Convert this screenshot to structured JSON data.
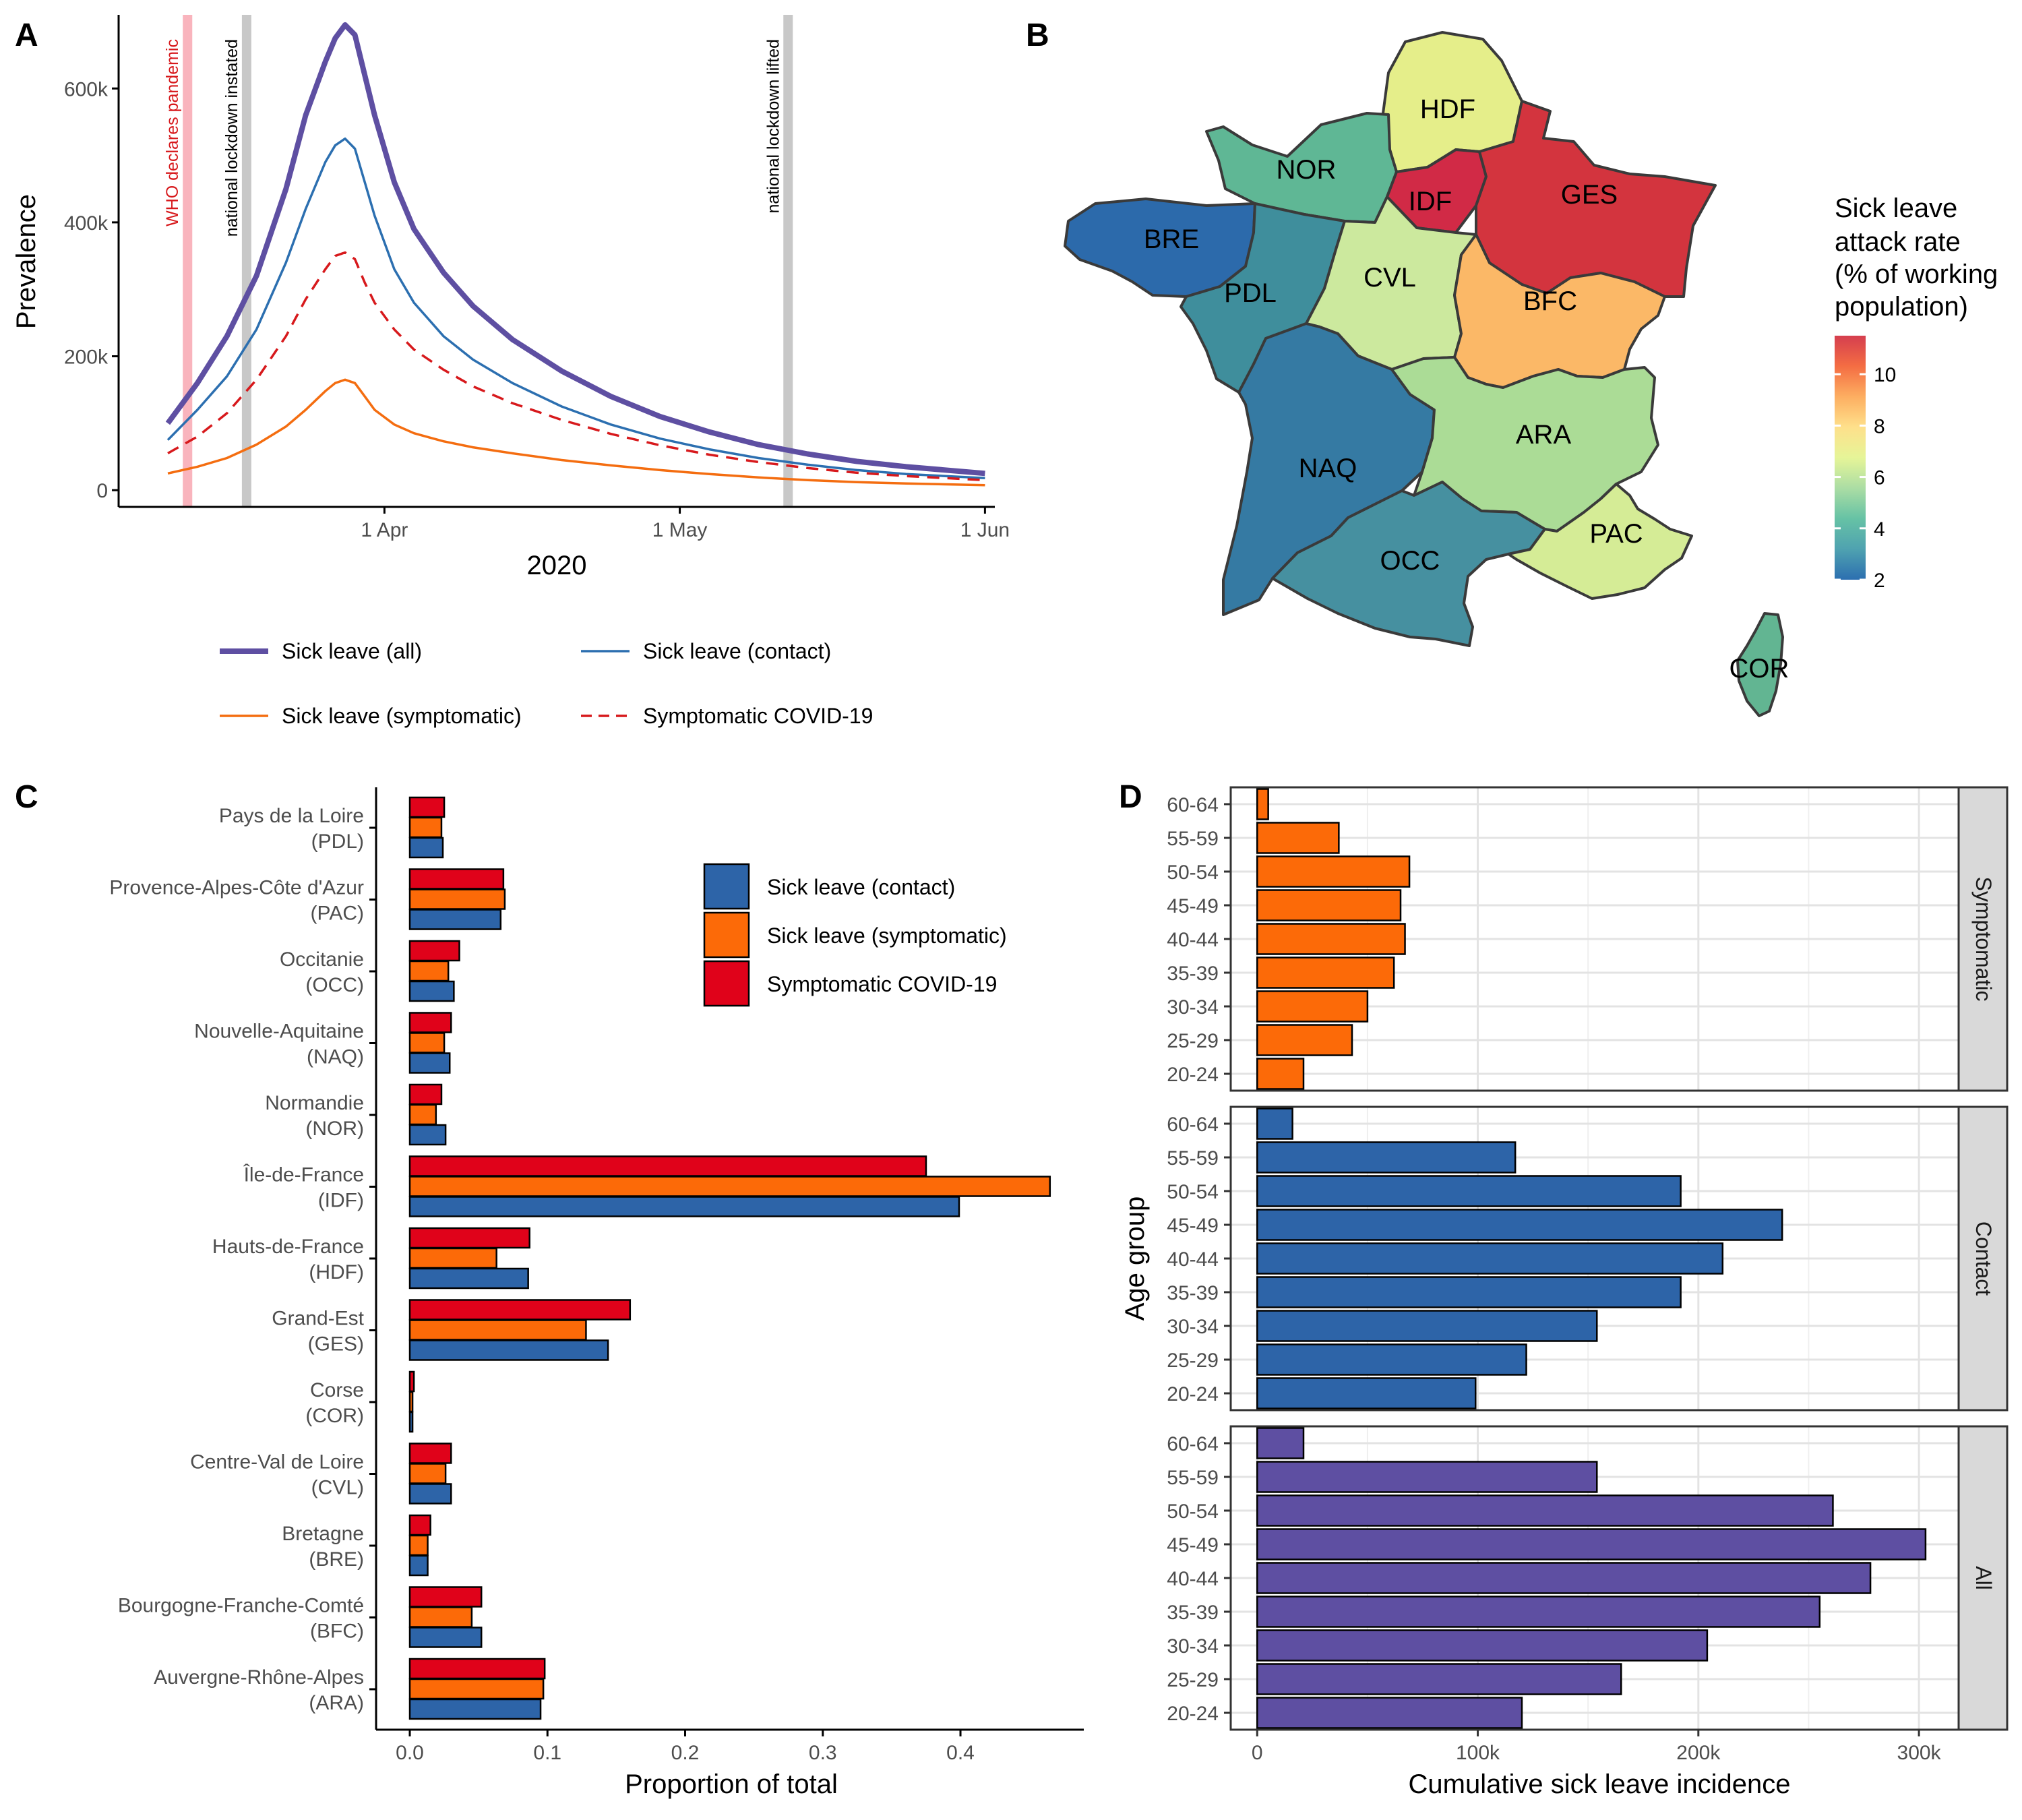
{
  "panels": {
    "a": "A",
    "b": "B",
    "c": "C",
    "d": "D"
  },
  "chart_data": [
    {
      "panel": "A",
      "type": "line",
      "xlabel": "2020",
      "ylabel": "Prevalence",
      "x_start": "2020-03-04",
      "x_ticks": [
        {
          "day": 27,
          "label": "1 Apr"
        },
        {
          "day": 57,
          "label": "1 May"
        },
        {
          "day": 88,
          "label": "1 Jun"
        }
      ],
      "y_ticks": [
        {
          "value": 0,
          "label": "0"
        },
        {
          "value": 200000,
          "label": "200k"
        },
        {
          "value": 400000,
          "label": "400k"
        },
        {
          "value": 600000,
          "label": "600k"
        }
      ],
      "xlim": [
        0,
        89
      ],
      "ylim": [
        -25000,
        710000
      ],
      "events": [
        {
          "day": 7,
          "label": "WHO declares pandemic",
          "color": "#f9b4bd",
          "text_color": "#d7191c"
        },
        {
          "day": 13,
          "label": "national lockdown instated",
          "color": "#c8c8c8",
          "text_color": "#000000"
        },
        {
          "day": 68,
          "label": "national lockdown lifted",
          "color": "#c8c8c8",
          "text_color": "#000000"
        }
      ],
      "series": [
        {
          "name": "Sick leave (all)",
          "color": "#5e4fa2",
          "dash": "solid",
          "width": "thick",
          "x": [
            5,
            8,
            11,
            14,
            17,
            19,
            21,
            22,
            23,
            24,
            25,
            26,
            28,
            30,
            33,
            36,
            40,
            45,
            50,
            55,
            60,
            65,
            70,
            75,
            80,
            88
          ],
          "y": [
            100000,
            160000,
            230000,
            320000,
            450000,
            560000,
            640000,
            675000,
            695000,
            680000,
            620000,
            560000,
            460000,
            390000,
            325000,
            275000,
            225000,
            178000,
            140000,
            110000,
            87000,
            68000,
            54000,
            43000,
            35000,
            25000
          ]
        },
        {
          "name": "Sick leave (contact)",
          "color": "#2c6fb0",
          "dash": "solid",
          "width": "thin",
          "x": [
            5,
            8,
            11,
            14,
            17,
            19,
            21,
            22,
            23,
            24,
            25,
            26,
            28,
            30,
            33,
            36,
            40,
            45,
            50,
            55,
            60,
            65,
            70,
            75,
            80,
            88
          ],
          "y": [
            75000,
            120000,
            170000,
            240000,
            340000,
            420000,
            490000,
            515000,
            525000,
            510000,
            460000,
            410000,
            330000,
            280000,
            230000,
            195000,
            160000,
            125000,
            98000,
            77000,
            61000,
            48000,
            38000,
            30000,
            24000,
            18000
          ]
        },
        {
          "name": "Symptomatic COVID-19",
          "color": "#d7191c",
          "dash": "dashed",
          "width": "thin",
          "x": [
            5,
            8,
            11,
            14,
            17,
            19,
            21,
            22,
            23,
            24,
            25,
            26,
            28,
            30,
            33,
            36,
            40,
            45,
            50,
            55,
            60,
            65,
            70,
            75,
            80,
            88
          ],
          "y": [
            55000,
            80000,
            115000,
            165000,
            230000,
            285000,
            330000,
            350000,
            355000,
            345000,
            310000,
            280000,
            240000,
            210000,
            180000,
            155000,
            130000,
            105000,
            84000,
            67000,
            53000,
            42000,
            33000,
            26000,
            21000,
            15000
          ]
        },
        {
          "name": "Sick leave (symptomatic)",
          "color": "#f46d10",
          "dash": "solid",
          "width": "thin",
          "x": [
            5,
            8,
            11,
            14,
            17,
            19,
            21,
            22,
            23,
            24,
            25,
            26,
            28,
            30,
            33,
            36,
            40,
            45,
            50,
            55,
            60,
            65,
            70,
            75,
            80,
            88
          ],
          "y": [
            25000,
            35000,
            48000,
            68000,
            95000,
            120000,
            148000,
            160000,
            165000,
            160000,
            140000,
            120000,
            98000,
            85000,
            73000,
            64000,
            55000,
            45000,
            37000,
            30000,
            24000,
            19000,
            15000,
            12000,
            10000,
            7500
          ]
        }
      ],
      "legend": [
        {
          "label": "Sick leave (all)",
          "color": "#5e4fa2",
          "dash": "solid",
          "width": "thick"
        },
        {
          "label": "Sick leave (contact)",
          "color": "#2c6fb0",
          "dash": "solid",
          "width": "thin"
        },
        {
          "label": "Sick leave (symptomatic)",
          "color": "#f46d10",
          "dash": "solid",
          "width": "thin"
        },
        {
          "label": "Symptomatic COVID-19",
          "color": "#d7191c",
          "dash": "dashed",
          "width": "thin"
        }
      ],
      "grid": false
    },
    {
      "panel": "B",
      "type": "choropleth",
      "legend_title": [
        "Sick leave",
        "attack rate",
        "(% of working",
        "population)"
      ],
      "color_scale": {
        "min": 2,
        "max": 11.5,
        "ticks": [
          2,
          4,
          6,
          8,
          10
        ],
        "colors": [
          "#2c6fb0",
          "#4fa2b0",
          "#66c2a5",
          "#abdda4",
          "#e6f598",
          "#fee08b",
          "#fdae61",
          "#f46d43",
          "#d53e4f"
        ]
      },
      "regions": [
        {
          "code": "HDF",
          "value": 6.0,
          "color": "#e5ee8a"
        },
        {
          "code": "NOR",
          "value": 3.7,
          "color": "#5fb795"
        },
        {
          "code": "IDF",
          "value": 11.5,
          "color": "#d12a46"
        },
        {
          "code": "GES",
          "value": 11.0,
          "color": "#d3343e"
        },
        {
          "code": "BRE",
          "value": 1.9,
          "color": "#2c6aab"
        },
        {
          "code": "PDL",
          "value": 3.0,
          "color": "#3f8e9c"
        },
        {
          "code": "CVL",
          "value": 5.3,
          "color": "#cce99e"
        },
        {
          "code": "BFC",
          "value": 7.8,
          "color": "#fbb867"
        },
        {
          "code": "NAQ",
          "value": 2.4,
          "color": "#357aa3"
        },
        {
          "code": "ARA",
          "value": 5.0,
          "color": "#abdc96"
        },
        {
          "code": "OCC",
          "value": 2.9,
          "color": "#4690a0"
        },
        {
          "code": "PAC",
          "value": 5.6,
          "color": "#d5ec96"
        },
        {
          "code": "COR",
          "value": 3.9,
          "color": "#62b592"
        }
      ]
    },
    {
      "panel": "C",
      "type": "bar",
      "orientation": "horizontal",
      "xlabel": "Proportion of total",
      "xlim": [
        0,
        0.47
      ],
      "x_ticks": [
        {
          "value": 0,
          "label": "0.0"
        },
        {
          "value": 0.1,
          "label": "0.1"
        },
        {
          "value": 0.2,
          "label": "0.2"
        },
        {
          "value": 0.3,
          "label": "0.3"
        },
        {
          "value": 0.4,
          "label": "0.4"
        }
      ],
      "categories": [
        {
          "name": "Pays de la Loire",
          "code": "(PDL)"
        },
        {
          "name": "Provence-Alpes-Côte d'Azur",
          "code": "(PAC)"
        },
        {
          "name": "Occitanie",
          "code": "(OCC)"
        },
        {
          "name": "Nouvelle-Aquitaine",
          "code": "(NAQ)"
        },
        {
          "name": "Normandie",
          "code": "(NOR)"
        },
        {
          "name": "Île-de-France",
          "code": "(IDF)"
        },
        {
          "name": "Hauts-de-France",
          "code": "(HDF)"
        },
        {
          "name": "Grand-Est",
          "code": "(GES)"
        },
        {
          "name": "Corse",
          "code": "(COR)"
        },
        {
          "name": "Centre-Val de Loire",
          "code": "(CVL)"
        },
        {
          "name": "Bretagne",
          "code": "(BRE)"
        },
        {
          "name": "Bourgogne-Franche-Comté",
          "code": "(BFC)"
        },
        {
          "name": "Auvergne-Rhône-Alpes",
          "code": "(ARA)"
        }
      ],
      "series": [
        {
          "name": "Symptomatic COVID-19",
          "color": "#e0021a",
          "values": [
            0.025,
            0.068,
            0.036,
            0.03,
            0.023,
            0.375,
            0.087,
            0.16,
            0.003,
            0.03,
            0.015,
            0.052,
            0.098
          ]
        },
        {
          "name": "Sick leave (symptomatic)",
          "color": "#fc6a08",
          "values": [
            0.023,
            0.069,
            0.028,
            0.025,
            0.019,
            0.465,
            0.063,
            0.128,
            0.002,
            0.026,
            0.013,
            0.045,
            0.097
          ]
        },
        {
          "name": "Sick leave (contact)",
          "color": "#2d64a8",
          "values": [
            0.024,
            0.066,
            0.032,
            0.029,
            0.026,
            0.399,
            0.086,
            0.144,
            0.002,
            0.03,
            0.013,
            0.052,
            0.095
          ]
        }
      ],
      "legend": [
        {
          "label": "Sick leave (contact)",
          "color": "#2d64a8"
        },
        {
          "label": "Sick leave (symptomatic)",
          "color": "#fc6a08"
        },
        {
          "label": "Symptomatic COVID-19",
          "color": "#e0021a"
        }
      ],
      "grid": false
    },
    {
      "panel": "D",
      "type": "bar",
      "orientation": "horizontal",
      "faceted": true,
      "xlabel": "Cumulative sick leave incidence",
      "ylabel": "Age group",
      "xlim": [
        -12000,
        318000
      ],
      "x_ticks": [
        {
          "value": 0,
          "label": "0"
        },
        {
          "value": 100000,
          "label": "100k"
        },
        {
          "value": 200000,
          "label": "200k"
        },
        {
          "value": 300000,
          "label": "300k"
        }
      ],
      "categories": [
        "60-64",
        "55-59",
        "50-54",
        "45-49",
        "40-44",
        "35-39",
        "30-34",
        "25-29",
        "20-24"
      ],
      "facets": [
        {
          "name": "Symptomatic",
          "color": "#fc6a08",
          "values": [
            5000,
            37000,
            69000,
            65000,
            67000,
            62000,
            50000,
            43000,
            21000
          ]
        },
        {
          "name": "Contact",
          "color": "#2d64a8",
          "values": [
            16000,
            117000,
            192000,
            238000,
            211000,
            192000,
            154000,
            122000,
            99000
          ]
        },
        {
          "name": "All",
          "color": "#5e4fa2",
          "values": [
            21000,
            154000,
            261000,
            303000,
            278000,
            255000,
            204000,
            165000,
            120000
          ]
        }
      ],
      "grid": true
    }
  ]
}
